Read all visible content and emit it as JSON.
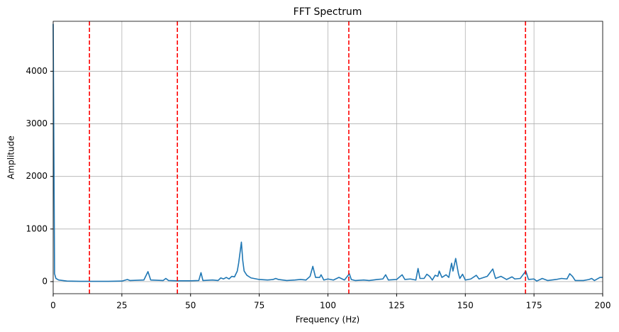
{
  "chart_data": {
    "type": "line",
    "title": "FFT Spectrum",
    "x_label": "Frequency (Hz)",
    "y_label": "Amplitude",
    "xlim": [
      0,
      200
    ],
    "ylim": [
      -230,
      4950
    ],
    "xticks": [
      0,
      25,
      50,
      75,
      100,
      125,
      150,
      175,
      200
    ],
    "yticks": [
      0,
      1000,
      2000,
      3000,
      4000
    ],
    "grid": true,
    "series": [
      {
        "color": "#1f77b4",
        "x": [
          0,
          0.5,
          1,
          2,
          5,
          10,
          15,
          20,
          25,
          27,
          28,
          33,
          34.5,
          35.5,
          40,
          41,
          42,
          45,
          50,
          53,
          53.8,
          54.5,
          58,
          60,
          61,
          62,
          63,
          64,
          65,
          66,
          67,
          67.5,
          68.5,
          69,
          69.5,
          70.5,
          72,
          75,
          78,
          80,
          81,
          82,
          85,
          88,
          90,
          92,
          93.5,
          94.5,
          95.5,
          97,
          97.5,
          98.5,
          100,
          102,
          104,
          106,
          107.8,
          108.5,
          110,
          113,
          115,
          118,
          120,
          121,
          122,
          125,
          127,
          128,
          130,
          132,
          132.8,
          133.5,
          135,
          136,
          137,
          138,
          139,
          140,
          140.5,
          141.5,
          143,
          144,
          145,
          145.5,
          146.5,
          147.5,
          148,
          149,
          150,
          152,
          154,
          155,
          158,
          160,
          161,
          163,
          165,
          167,
          168,
          170,
          171,
          172,
          173,
          175,
          176,
          178,
          180,
          183,
          185,
          187,
          188,
          189,
          190,
          193,
          195,
          196,
          197,
          199,
          200
        ],
        "values": [
          4900,
          150,
          60,
          30,
          10,
          5,
          5,
          5,
          10,
          40,
          20,
          30,
          190,
          30,
          20,
          60,
          20,
          15,
          15,
          20,
          170,
          20,
          30,
          20,
          70,
          50,
          80,
          50,
          100,
          90,
          200,
          350,
          750,
          400,
          200,
          120,
          70,
          40,
          30,
          40,
          60,
          40,
          20,
          30,
          40,
          30,
          100,
          290,
          80,
          80,
          130,
          30,
          50,
          30,
          80,
          30,
          150,
          40,
          20,
          30,
          20,
          40,
          50,
          130,
          30,
          40,
          130,
          40,
          50,
          30,
          250,
          60,
          60,
          140,
          100,
          30,
          120,
          100,
          200,
          80,
          130,
          80,
          350,
          200,
          440,
          150,
          60,
          140,
          30,
          50,
          120,
          50,
          100,
          240,
          60,
          100,
          40,
          90,
          50,
          60,
          130,
          200,
          40,
          50,
          10,
          60,
          20,
          40,
          60,
          50,
          150,
          100,
          20,
          20,
          40,
          60,
          20,
          80,
          80
        ]
      }
    ],
    "vlines": {
      "color": "#ff0000",
      "x": [
        13.2,
        45.2,
        107.6,
        171.9
      ]
    }
  }
}
